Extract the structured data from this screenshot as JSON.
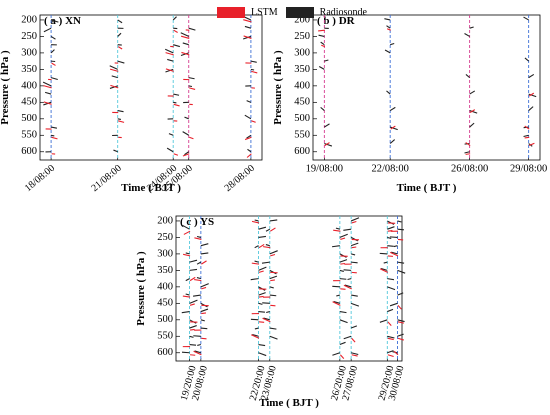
{
  "legend": {
    "items": [
      {
        "label": "LSTM",
        "color": "#e8202a"
      },
      {
        "label": "Radiosonde",
        "color": "#222222"
      }
    ]
  },
  "colors": {
    "lstm": "#e8202a",
    "radiosonde": "#222222",
    "vline_a": "#3d6fd6",
    "vline_b": "#54c8dc",
    "vline_c": "#d63b8f"
  },
  "chart_data": [
    {
      "id": "xn",
      "type": "line",
      "panel_label": "( a ) XN",
      "xlabel": "Time ( BJT )",
      "ylabel": "Pressure ( hPa )",
      "ylim": [
        625,
        185
      ],
      "yticks": [
        200,
        250,
        300,
        350,
        400,
        450,
        500,
        550,
        600
      ],
      "xlim": [
        0,
        10
      ],
      "xticks": [
        {
          "label": "18/08:00",
          "x": 0.5
        },
        {
          "label": "21/08:00",
          "x": 3.5
        },
        {
          "label": "24/08:00",
          "x": 6.0
        },
        {
          "label": "25/08:00",
          "x": 6.7
        },
        {
          "label": "28/08:00",
          "x": 9.5
        }
      ],
      "profiles": [
        {
          "x": 0.5,
          "line": "vline_a"
        },
        {
          "x": 3.5,
          "line": "vline_b"
        },
        {
          "x": 6.0,
          "line": "vline_b"
        },
        {
          "x": 6.7,
          "line": "vline_c"
        },
        {
          "x": 9.5,
          "line": "vline_a"
        }
      ]
    },
    {
      "id": "dr",
      "type": "line",
      "panel_label": "( b ) DR",
      "xlabel": "Time ( BJT )",
      "ylabel": "Pressure ( hPa )",
      "ylim": [
        625,
        185
      ],
      "yticks": [
        200,
        250,
        300,
        350,
        400,
        450,
        500,
        550,
        600
      ],
      "xlim": [
        0,
        10
      ],
      "xticks": [
        {
          "label": "19/08:00",
          "x": 0.5
        },
        {
          "label": "22/08:00",
          "x": 3.4
        },
        {
          "label": "26/08:00",
          "x": 6.9
        },
        {
          "label": "29/08:00",
          "x": 9.5
        }
      ],
      "profiles": [
        {
          "x": 0.5,
          "line": "vline_c"
        },
        {
          "x": 3.4,
          "line": "vline_a"
        },
        {
          "x": 6.9,
          "line": "vline_c"
        },
        {
          "x": 9.5,
          "line": "vline_a"
        }
      ]
    },
    {
      "id": "ys",
      "type": "line",
      "panel_label": "( c ) YS",
      "xlabel": "Time ( BJT )",
      "ylabel": "Pressure ( hPa )",
      "ylim": [
        625,
        185
      ],
      "yticks": [
        200,
        250,
        300,
        350,
        400,
        450,
        500,
        550,
        600
      ],
      "xlim": [
        0,
        10
      ],
      "xticks": [
        {
          "label": "19/20:00",
          "x": 0.6
        },
        {
          "label": "20/08:00",
          "x": 1.1
        },
        {
          "label": "22/20:00",
          "x": 3.65
        },
        {
          "label": "23/08:00",
          "x": 4.15
        },
        {
          "label": "26/20:00",
          "x": 7.25
        },
        {
          "label": "27/08:00",
          "x": 7.75
        },
        {
          "label": "29/20:00",
          "x": 9.35
        },
        {
          "label": "30/08:00",
          "x": 9.8
        }
      ],
      "profiles": [
        {
          "x": 0.6,
          "line": "vline_b"
        },
        {
          "x": 1.1,
          "line": "vline_a"
        },
        {
          "x": 3.65,
          "line": "vline_b"
        },
        {
          "x": 4.15,
          "line": "vline_b"
        },
        {
          "x": 7.25,
          "line": "vline_b"
        },
        {
          "x": 7.75,
          "line": "vline_b"
        },
        {
          "x": 9.35,
          "line": "vline_b"
        },
        {
          "x": 9.8,
          "line": "vline_a"
        }
      ]
    }
  ]
}
